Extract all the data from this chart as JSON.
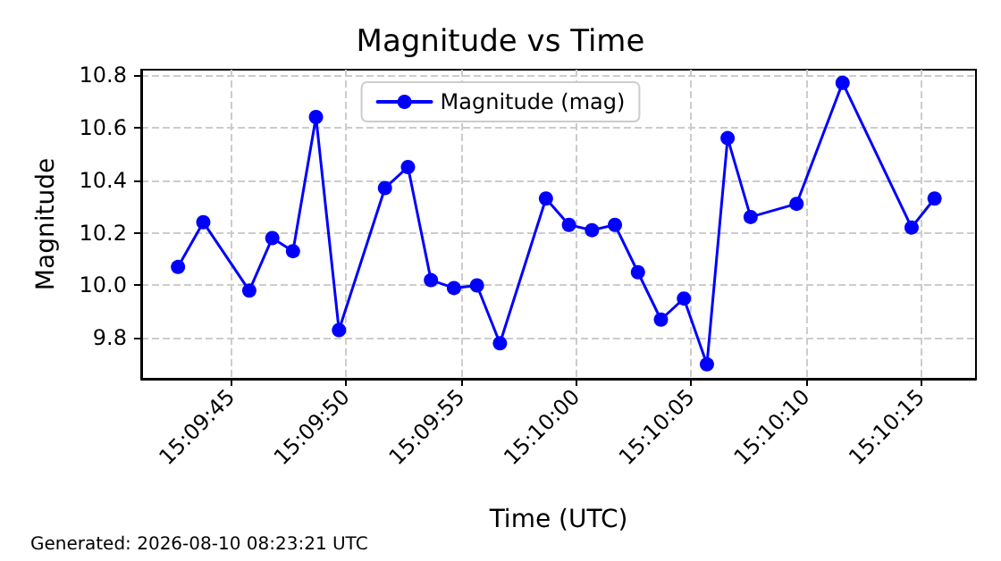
{
  "chart_data": {
    "type": "line",
    "title": "Magnitude vs Time",
    "xlabel": "Time (UTC)",
    "ylabel": "Magnitude",
    "annotations": [
      "Generated: 2026-08-10 08:23:21 UTC"
    ],
    "x": [
      "2026-08-10T15:09:42.7",
      "2026-08-10T15:09:43.8",
      "2026-08-10T15:09:45.8",
      "2026-08-10T15:09:46.8",
      "2026-08-10T15:09:47.7",
      "2026-08-10T15:09:48.7",
      "2026-08-10T15:09:49.7",
      "2026-08-10T15:09:51.7",
      "2026-08-10T15:09:52.7",
      "2026-08-10T15:09:53.7",
      "2026-08-10T15:09:54.7",
      "2026-08-10T15:09:55.7",
      "2026-08-10T15:09:56.7",
      "2026-08-10T15:09:58.7",
      "2026-08-10T15:09:59.7",
      "2026-08-10T15:10:00.7",
      "2026-08-10T15:10:01.7",
      "2026-08-10T15:10:02.7",
      "2026-08-10T15:10:03.7",
      "2026-08-10T15:10:04.7",
      "2026-08-10T15:10:05.7",
      "2026-08-10T15:10:06.6",
      "2026-08-10T15:10:07.6",
      "2026-08-10T15:10:09.6",
      "2026-08-10T15:10:11.6",
      "2026-08-10T15:10:14.6",
      "2026-08-10T15:10:15.6"
    ],
    "series": [
      {
        "name": "Magnitude (mag)",
        "color": "#0000ff",
        "values": [
          10.07,
          10.24,
          9.98,
          10.18,
          10.13,
          10.64,
          9.83,
          10.37,
          10.45,
          10.02,
          9.99,
          10.0,
          9.78,
          10.33,
          10.23,
          10.21,
          10.23,
          10.05,
          9.87,
          9.95,
          9.7,
          10.56,
          10.26,
          10.31,
          10.77,
          10.22,
          10.33
        ]
      }
    ],
    "xlim": [
      "2026-08-10T15:09:41.1",
      "2026-08-10T15:10:17.4"
    ],
    "xticks": [
      {
        "value": "2026-08-10T15:09:45",
        "label": "15:09:45"
      },
      {
        "value": "2026-08-10T15:09:50",
        "label": "15:09:50"
      },
      {
        "value": "2026-08-10T15:09:55",
        "label": "15:09:55"
      },
      {
        "value": "2026-08-10T15:10:00",
        "label": "15:10:00"
      },
      {
        "value": "2026-08-10T15:10:05",
        "label": "15:10:05"
      },
      {
        "value": "2026-08-10T15:10:10",
        "label": "15:10:10"
      },
      {
        "value": "2026-08-10T15:10:15",
        "label": "15:10:15"
      }
    ],
    "ylim": [
      9.645,
      10.82
    ],
    "yticks": [
      9.8,
      {
        "value": 10,
        "label": "10.0"
      },
      10.2,
      10.4,
      10.6,
      10.8
    ],
    "grid": true,
    "legend": "top",
    "marker": "circle",
    "line_style": "solid"
  }
}
